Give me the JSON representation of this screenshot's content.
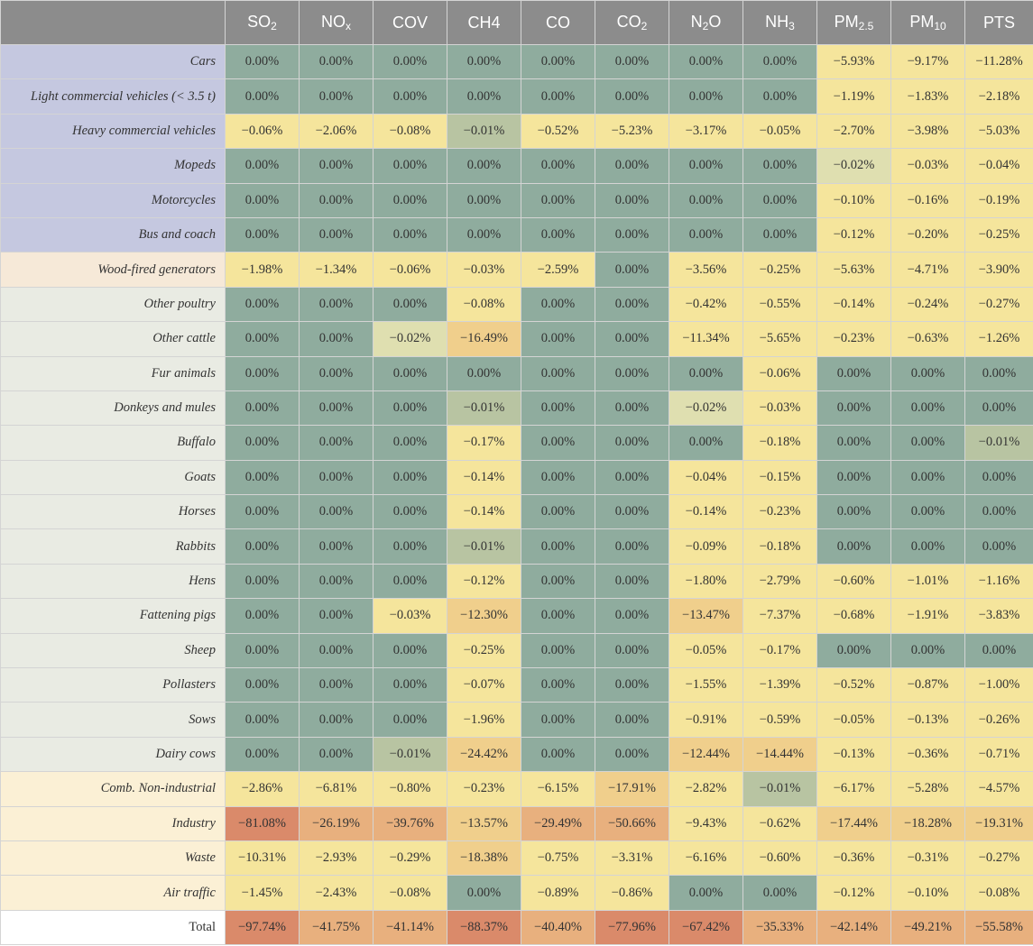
{
  "colors": {
    "header_bg": "#8c8c8c",
    "header_text": "#ffffff",
    "group_transport": "#c5c8e0",
    "group_generators": "#f6e9d8",
    "group_livestock": "#e9ebe3",
    "group_other_sources": "#fbf0d5",
    "group_total": "#ffffff",
    "zero": "#8fac9e",
    "very_small": "#b8c4a2",
    "small_light": "#dfdfb0",
    "light": "#f5e59c",
    "medium": "#f0cf8c",
    "high": "#e8b07e",
    "very_high": "#da8a6a"
  },
  "chart_data": {
    "type": "table",
    "title": "",
    "row_header": "",
    "columns": [
      {
        "base": "SO",
        "sub": "2"
      },
      {
        "base": "NO",
        "sub": "x"
      },
      {
        "base": "COV",
        "sub": ""
      },
      {
        "base": "CH4",
        "sub": ""
      },
      {
        "base": "CO",
        "sub": ""
      },
      {
        "base": "CO",
        "sub": "2"
      },
      {
        "base": "N",
        "sub": "2",
        "post": "O"
      },
      {
        "base": "NH",
        "sub": "3"
      },
      {
        "base": "PM",
        "sub": "2.5"
      },
      {
        "base": "PM",
        "sub": "10"
      },
      {
        "base": "PTS",
        "sub": ""
      }
    ],
    "rows": [
      {
        "label": "Cars",
        "group": "transport",
        "values": [
          0,
          0,
          0,
          0,
          0,
          0,
          0,
          0,
          -5.93,
          -9.17,
          -11.28
        ]
      },
      {
        "label": "Light commercial vehicles (< 3.5 t)",
        "group": "transport",
        "values": [
          0,
          0,
          0,
          0,
          0,
          0,
          0,
          0,
          -1.19,
          -1.83,
          -2.18
        ]
      },
      {
        "label": "Heavy commercial vehicles",
        "group": "transport",
        "values": [
          -0.06,
          -2.06,
          -0.08,
          -0.01,
          -0.52,
          -5.23,
          -3.17,
          -0.05,
          -2.7,
          -3.98,
          -5.03
        ]
      },
      {
        "label": "Mopeds",
        "group": "transport",
        "values": [
          0,
          0,
          0,
          0,
          0,
          0,
          0,
          0,
          -0.02,
          -0.03,
          -0.04
        ]
      },
      {
        "label": "Motorcycles",
        "group": "transport",
        "values": [
          0,
          0,
          0,
          0,
          0,
          0,
          0,
          0,
          -0.1,
          -0.16,
          -0.19
        ]
      },
      {
        "label": "Bus and coach",
        "group": "transport",
        "values": [
          0,
          0,
          0,
          0,
          0,
          0,
          0,
          0,
          -0.12,
          -0.2,
          -0.25
        ]
      },
      {
        "label": "Wood-fired generators",
        "group": "generators",
        "values": [
          -1.98,
          -1.34,
          -0.06,
          -0.03,
          -2.59,
          0,
          -3.56,
          -0.25,
          -5.63,
          -4.71,
          -3.9
        ]
      },
      {
        "label": "Other poultry",
        "group": "livestock",
        "values": [
          0,
          0,
          0,
          -0.08,
          0,
          0,
          -0.42,
          -0.55,
          -0.14,
          -0.24,
          -0.27
        ]
      },
      {
        "label": "Other cattle",
        "group": "livestock",
        "values": [
          0,
          0,
          -0.02,
          -16.49,
          0,
          0,
          -11.34,
          -5.65,
          -0.23,
          -0.63,
          -1.26
        ]
      },
      {
        "label": "Fur animals",
        "group": "livestock",
        "values": [
          0,
          0,
          0,
          0,
          0,
          0,
          0,
          -0.06,
          0,
          0,
          0
        ]
      },
      {
        "label": "Donkeys and mules",
        "group": "livestock",
        "values": [
          0,
          0,
          0,
          -0.01,
          0,
          0,
          -0.02,
          -0.03,
          0,
          0,
          0
        ]
      },
      {
        "label": "Buffalo",
        "group": "livestock",
        "values": [
          0,
          0,
          0,
          -0.17,
          0,
          0,
          0,
          -0.18,
          0,
          0,
          -0.01
        ]
      },
      {
        "label": "Goats",
        "group": "livestock",
        "values": [
          0,
          0,
          0,
          -0.14,
          0,
          0,
          -0.04,
          -0.15,
          0,
          0,
          0
        ]
      },
      {
        "label": "Horses",
        "group": "livestock",
        "values": [
          0,
          0,
          0,
          -0.14,
          0,
          0,
          -0.14,
          -0.23,
          0,
          0,
          0
        ]
      },
      {
        "label": "Rabbits",
        "group": "livestock",
        "values": [
          0,
          0,
          0,
          -0.01,
          0,
          0,
          -0.09,
          -0.18,
          0,
          0,
          0
        ]
      },
      {
        "label": "Hens",
        "group": "livestock",
        "values": [
          0,
          0,
          0,
          -0.12,
          0,
          0,
          -1.8,
          -2.79,
          -0.6,
          -1.01,
          -1.16
        ]
      },
      {
        "label": "Fattening pigs",
        "group": "livestock",
        "values": [
          0,
          0,
          -0.03,
          -12.3,
          0,
          0,
          -13.47,
          -7.37,
          -0.68,
          -1.91,
          -3.83
        ]
      },
      {
        "label": "Sheep",
        "group": "livestock",
        "values": [
          0,
          0,
          0,
          -0.25,
          0,
          0,
          -0.05,
          -0.17,
          0,
          0,
          0
        ]
      },
      {
        "label": "Pollasters",
        "group": "livestock",
        "values": [
          0,
          0,
          0,
          -0.07,
          0,
          0,
          -1.55,
          -1.39,
          -0.52,
          -0.87,
          -1.0
        ]
      },
      {
        "label": "Sows",
        "group": "livestock",
        "values": [
          0,
          0,
          0,
          -1.96,
          0,
          0,
          -0.91,
          -0.59,
          -0.05,
          -0.13,
          -0.26
        ]
      },
      {
        "label": "Dairy cows",
        "group": "livestock",
        "values": [
          0,
          0,
          -0.01,
          -24.42,
          0,
          0,
          -12.44,
          -14.44,
          -0.13,
          -0.36,
          -0.71
        ]
      },
      {
        "label": "Comb. Non-industrial",
        "group": "other_sources",
        "values": [
          -2.86,
          -6.81,
          -0.8,
          -0.23,
          -6.15,
          -17.91,
          -2.82,
          -0.01,
          -6.17,
          -5.28,
          -4.57
        ]
      },
      {
        "label": "Industry",
        "group": "other_sources",
        "values": [
          -81.08,
          -26.19,
          -39.76,
          -13.57,
          -29.49,
          -50.66,
          -9.43,
          -0.62,
          -17.44,
          -18.28,
          -19.31
        ]
      },
      {
        "label": "Waste",
        "group": "other_sources",
        "values": [
          -10.31,
          -2.93,
          -0.29,
          -18.38,
          -0.75,
          -3.31,
          -6.16,
          -0.6,
          -0.36,
          -0.31,
          -0.27
        ]
      },
      {
        "label": "Air traffic",
        "group": "other_sources",
        "values": [
          -1.45,
          -2.43,
          -0.08,
          0,
          -0.89,
          -0.86,
          0,
          0,
          -0.12,
          -0.1,
          -0.08
        ]
      },
      {
        "label": "Total",
        "group": "total",
        "values": [
          -97.74,
          -41.75,
          -41.14,
          -88.37,
          -40.4,
          -77.96,
          -67.42,
          -35.33,
          -42.14,
          -49.21,
          -55.58
        ]
      }
    ],
    "value_unit": "%"
  }
}
